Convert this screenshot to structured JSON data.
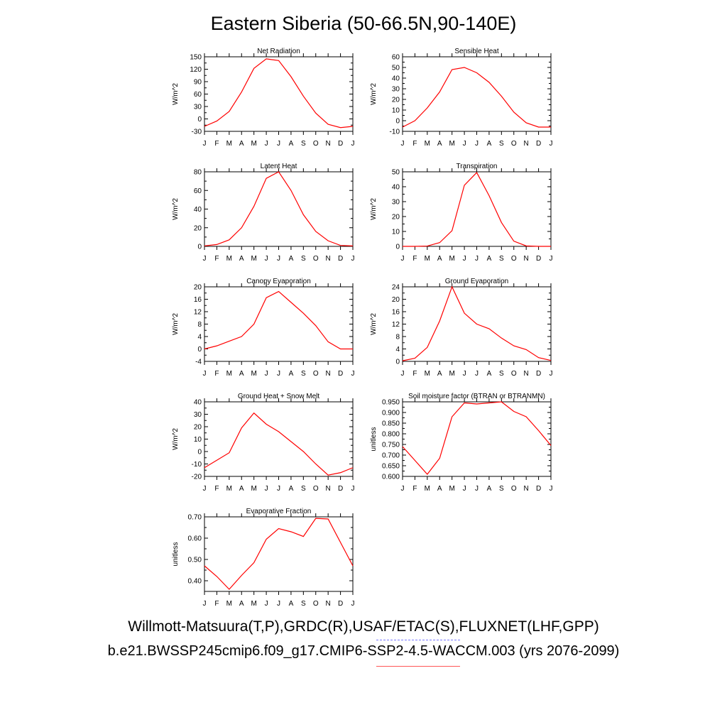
{
  "title": "Eastern Siberia (50-66.5N,90-140E)",
  "footer": {
    "observations": "Willmott-Matsuura(T,P),GRDC(R),USAF/ETAC(S),FLUXNET(LHF,GPP)",
    "case": "b.e21.BWSSP245cmip6.f09_g17.CMIP6-SSP2-4.5-WACCM.003 (yrs 2076-2099)"
  },
  "colors": {
    "model_line": "#ff0000",
    "observation_dash": "#7777ff"
  },
  "chart_data": [
    {
      "type": "line",
      "title": "Net Radiation",
      "ylabel": "W/m^2",
      "categories": [
        "J",
        "F",
        "M",
        "A",
        "M",
        "J",
        "J",
        "A",
        "S",
        "O",
        "N",
        "D",
        "J"
      ],
      "ylim": [
        -30,
        150
      ],
      "yticks": [
        -30,
        0,
        30,
        60,
        90,
        120,
        150
      ],
      "ytick_labels": [
        "-30",
        "0",
        "30",
        "60",
        "90",
        "120",
        "150"
      ],
      "values": [
        -18,
        -5,
        18,
        65,
        122,
        145,
        141,
        102,
        55,
        14,
        -13,
        -21,
        -18
      ]
    },
    {
      "type": "line",
      "title": "Sensible Heat",
      "ylabel": "W/m^2",
      "categories": [
        "J",
        "F",
        "M",
        "A",
        "M",
        "J",
        "J",
        "A",
        "S",
        "O",
        "N",
        "D",
        "J"
      ],
      "ylim": [
        -10,
        60
      ],
      "yticks": [
        -10,
        0,
        10,
        20,
        30,
        40,
        50,
        60
      ],
      "ytick_labels": [
        "-10",
        "0",
        "10",
        "20",
        "30",
        "40",
        "50",
        "60"
      ],
      "values": [
        -6,
        0,
        12,
        27,
        48,
        50,
        45,
        36,
        23,
        8,
        -2,
        -6,
        -6
      ]
    },
    {
      "type": "line",
      "title": "Latent Heat",
      "ylabel": "W/m^2",
      "categories": [
        "J",
        "F",
        "M",
        "A",
        "M",
        "J",
        "J",
        "A",
        "S",
        "O",
        "N",
        "D",
        "J"
      ],
      "ylim": [
        0,
        80
      ],
      "yticks": [
        0,
        20,
        40,
        60,
        80
      ],
      "ytick_labels": [
        "0",
        "20",
        "40",
        "60",
        "80"
      ],
      "values": [
        0.5,
        2,
        7,
        20,
        43,
        73,
        80,
        60,
        34,
        16,
        6,
        1,
        0.5
      ]
    },
    {
      "type": "line",
      "title": "Transpiration",
      "ylabel": "W/m^2",
      "categories": [
        "J",
        "F",
        "M",
        "A",
        "M",
        "J",
        "J",
        "A",
        "S",
        "O",
        "N",
        "D",
        "J"
      ],
      "ylim": [
        0,
        50
      ],
      "yticks": [
        0,
        10,
        20,
        30,
        40,
        50
      ],
      "ytick_labels": [
        "0",
        "10",
        "20",
        "30",
        "40",
        "50"
      ],
      "values": [
        0,
        0,
        0.2,
        2.5,
        10.5,
        41,
        49.5,
        34,
        16,
        3.5,
        0.3,
        0,
        0
      ]
    },
    {
      "type": "line",
      "title": "Canopy Evaporation",
      "ylabel": "W/m^2",
      "categories": [
        "J",
        "F",
        "M",
        "A",
        "M",
        "J",
        "J",
        "A",
        "S",
        "O",
        "N",
        "D",
        "J"
      ],
      "ylim": [
        -4,
        20
      ],
      "yticks": [
        -4,
        0,
        4,
        8,
        12,
        16,
        20
      ],
      "ytick_labels": [
        "-4",
        "0",
        "4",
        "8",
        "12",
        "16",
        "20"
      ],
      "values": [
        0,
        1,
        2.5,
        4,
        8,
        16.5,
        18.5,
        15,
        11.5,
        7.5,
        2.3,
        0,
        0
      ]
    },
    {
      "type": "line",
      "title": "Ground Evaporation",
      "ylabel": "W/m^2",
      "categories": [
        "J",
        "F",
        "M",
        "A",
        "M",
        "J",
        "J",
        "A",
        "S",
        "O",
        "N",
        "D",
        "J"
      ],
      "ylim": [
        0,
        24
      ],
      "yticks": [
        0,
        4,
        8,
        12,
        16,
        20,
        24
      ],
      "ytick_labels": [
        "0",
        "4",
        "8",
        "12",
        "16",
        "20",
        "24"
      ],
      "values": [
        0.2,
        1,
        4.5,
        13,
        24,
        15.5,
        12,
        10.5,
        7.5,
        5,
        3.8,
        1.2,
        0.3
      ]
    },
    {
      "type": "line",
      "title": "Ground Heat + Snow Melt",
      "ylabel": "W/m^2",
      "categories": [
        "J",
        "F",
        "M",
        "A",
        "M",
        "J",
        "J",
        "A",
        "S",
        "O",
        "N",
        "D",
        "J"
      ],
      "ylim": [
        -20,
        40
      ],
      "yticks": [
        -20,
        -10,
        0,
        10,
        20,
        30,
        40
      ],
      "ytick_labels": [
        "-20",
        "-10",
        "0",
        "10",
        "20",
        "30",
        "40"
      ],
      "values": [
        -13,
        -7,
        -1,
        19,
        31,
        22,
        16,
        8,
        0,
        -10,
        -19,
        -17,
        -13
      ]
    },
    {
      "type": "line",
      "title": "Soil moisture factor (BTRAN or BTRANMN)",
      "ylabel": "unitless",
      "categories": [
        "J",
        "F",
        "M",
        "A",
        "M",
        "J",
        "J",
        "A",
        "S",
        "O",
        "N",
        "D",
        "J"
      ],
      "ylim": [
        0.6,
        0.95
      ],
      "yticks": [
        0.6,
        0.65,
        0.7,
        0.75,
        0.8,
        0.85,
        0.9,
        0.95
      ],
      "ytick_labels": [
        "0.600",
        "0.650",
        "0.700",
        "0.750",
        "0.800",
        "0.850",
        "0.900",
        "0.950"
      ],
      "values": [
        0.74,
        0.675,
        0.61,
        0.685,
        0.88,
        0.945,
        0.94,
        0.945,
        0.95,
        0.905,
        0.88,
        0.815,
        0.745
      ]
    },
    {
      "type": "line",
      "title": "Evaporative Fraction",
      "ylabel": "unitless",
      "categories": [
        "J",
        "F",
        "M",
        "A",
        "M",
        "J",
        "J",
        "A",
        "S",
        "O",
        "N",
        "D",
        "J"
      ],
      "ylim": [
        0.35,
        0.7
      ],
      "yticks": [
        0.4,
        0.5,
        0.6,
        0.7
      ],
      "ytick_labels": [
        "0.40",
        "0.50",
        "0.60",
        "0.70"
      ],
      "values": [
        0.47,
        0.42,
        0.36,
        0.425,
        0.485,
        0.595,
        0.645,
        0.63,
        0.608,
        0.693,
        0.69,
        0.58,
        0.47
      ]
    }
  ]
}
